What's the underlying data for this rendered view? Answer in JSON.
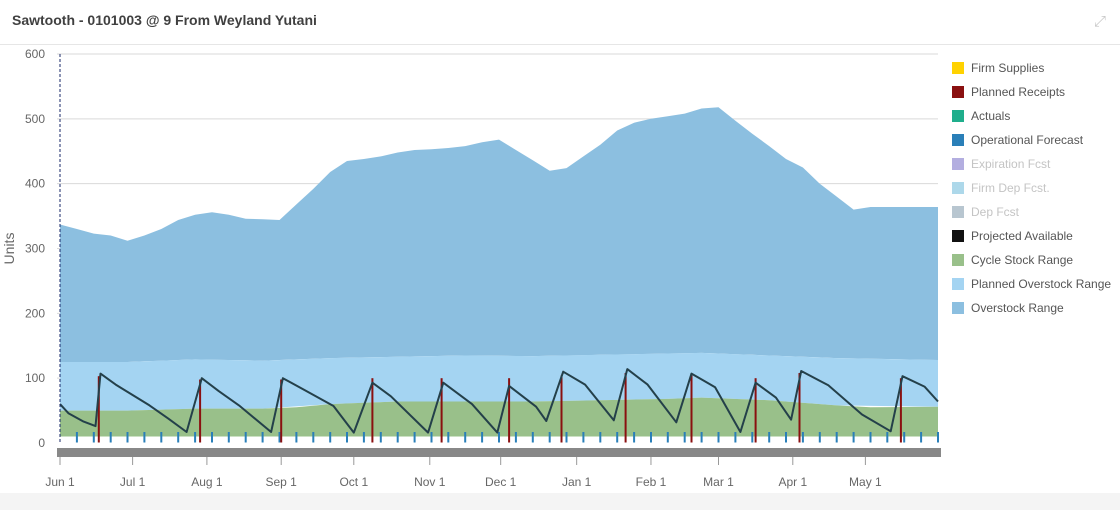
{
  "header": {
    "title": "Sawtooth - 0101003 @ 9 From Weyland Yutani",
    "expand_icon": "expand-icon"
  },
  "colors": {
    "overstock": "#8cbfe0",
    "planned_overstock": "#a4d4f2",
    "cycle_stock": "#99c08a",
    "projected": "#24404a",
    "planned_receipts": "#8a1010",
    "operational_forecast": "#2a7fb8",
    "grid": "#d9d9d9",
    "scrollbar": "#888888"
  },
  "legend": [
    {
      "label": "Firm Supplies",
      "color": "#ffd200",
      "active": true
    },
    {
      "label": "Planned Receipts",
      "color": "#8a1010",
      "active": true
    },
    {
      "label": "Actuals",
      "color": "#1fae8c",
      "active": true
    },
    {
      "label": "Operational Forecast",
      "color": "#2a7fb8",
      "active": true
    },
    {
      "label": "Expiration Fcst",
      "color": "#b3aee0",
      "active": false
    },
    {
      "label": "Firm Dep Fcst.",
      "color": "#add8ea",
      "active": false
    },
    {
      "label": "Dep Fcst",
      "color": "#b8c6d0",
      "active": false
    },
    {
      "label": "Projected Available",
      "color": "#111111",
      "active": true
    },
    {
      "label": "Cycle Stock Range",
      "color": "#99c08a",
      "active": true
    },
    {
      "label": "Planned Overstock Range",
      "color": "#a4d4f2",
      "active": true
    },
    {
      "label": "Overstock Range",
      "color": "#8cbfe0",
      "active": true
    }
  ],
  "chart_data": {
    "type": "area",
    "ylabel": "Units",
    "ylim": [
      0,
      600
    ],
    "yticks": [
      0,
      100,
      200,
      300,
      400,
      500,
      600
    ],
    "xlim": [
      0,
      52
    ],
    "xticks": [
      {
        "week": 0,
        "label": "Jun 1"
      },
      {
        "week": 4.3,
        "label": "Jul 1"
      },
      {
        "week": 8.7,
        "label": "Aug 1"
      },
      {
        "week": 13.1,
        "label": "Sep 1"
      },
      {
        "week": 17.4,
        "label": "Oct 1"
      },
      {
        "week": 21.9,
        "label": "Nov 1"
      },
      {
        "week": 26.1,
        "label": "Dec 1"
      },
      {
        "week": 30.6,
        "label": "Jan 1"
      },
      {
        "week": 35.0,
        "label": "Feb 1"
      },
      {
        "week": 39.0,
        "label": "Mar 1"
      },
      {
        "week": 43.4,
        "label": "Apr 1"
      },
      {
        "week": 47.7,
        "label": "May 1"
      }
    ],
    "overstock_top": [
      [
        0,
        337
      ],
      [
        1,
        330
      ],
      [
        2,
        323
      ],
      [
        3,
        320
      ],
      [
        4,
        312
      ],
      [
        5,
        320
      ],
      [
        6,
        330
      ],
      [
        7,
        344
      ],
      [
        8,
        352
      ],
      [
        9,
        356
      ],
      [
        10,
        352
      ],
      [
        11,
        346
      ],
      [
        12,
        345
      ],
      [
        13,
        344
      ],
      [
        14,
        368
      ],
      [
        15,
        392
      ],
      [
        16,
        418
      ],
      [
        17,
        435
      ],
      [
        18,
        438
      ],
      [
        19,
        442
      ],
      [
        20,
        448
      ],
      [
        21,
        452
      ],
      [
        22,
        453
      ],
      [
        23,
        455
      ],
      [
        24,
        458
      ],
      [
        25,
        464
      ],
      [
        26,
        468
      ],
      [
        27,
        452
      ],
      [
        28,
        436
      ],
      [
        29,
        420
      ],
      [
        30,
        424
      ],
      [
        31,
        442
      ],
      [
        32,
        460
      ],
      [
        33,
        482
      ],
      [
        34,
        494
      ],
      [
        35,
        500
      ],
      [
        36,
        504
      ],
      [
        37,
        508
      ],
      [
        38,
        516
      ],
      [
        39,
        518
      ],
      [
        40,
        497
      ],
      [
        41,
        477
      ],
      [
        42,
        458
      ],
      [
        43,
        438
      ],
      [
        44,
        425
      ],
      [
        45,
        400
      ],
      [
        46,
        380
      ],
      [
        47,
        360
      ],
      [
        48,
        364
      ],
      [
        49,
        364
      ],
      [
        50,
        364
      ],
      [
        51,
        364
      ],
      [
        52,
        364
      ]
    ],
    "planned_overstock_top": [
      [
        0,
        125
      ],
      [
        4,
        125
      ],
      [
        8,
        129
      ],
      [
        12,
        127
      ],
      [
        16,
        131
      ],
      [
        20,
        133
      ],
      [
        24,
        135
      ],
      [
        28,
        134
      ],
      [
        32,
        136
      ],
      [
        36,
        138
      ],
      [
        38,
        139
      ],
      [
        42,
        135
      ],
      [
        46,
        131
      ],
      [
        52,
        128
      ]
    ],
    "cycle_stock_top": [
      [
        0,
        50
      ],
      [
        4,
        50
      ],
      [
        8,
        53
      ],
      [
        12,
        53
      ],
      [
        14,
        55
      ],
      [
        16,
        60
      ],
      [
        18,
        62
      ],
      [
        20,
        64
      ],
      [
        24,
        64
      ],
      [
        28,
        64
      ],
      [
        32,
        66
      ],
      [
        36,
        68
      ],
      [
        38,
        70
      ],
      [
        42,
        66
      ],
      [
        46,
        58
      ],
      [
        48,
        55
      ],
      [
        52,
        56
      ]
    ],
    "cycle_stock_bottom": 10,
    "projected_available": [
      [
        0,
        60
      ],
      [
        0.5,
        46
      ],
      [
        1.4,
        33
      ],
      [
        2.1,
        26
      ],
      [
        2.4,
        107
      ],
      [
        3.3,
        90
      ],
      [
        4.3,
        74
      ],
      [
        5.3,
        58
      ],
      [
        6.4,
        38
      ],
      [
        7.5,
        17
      ],
      [
        8.4,
        100
      ],
      [
        9.4,
        80
      ],
      [
        10.6,
        58
      ],
      [
        12.5,
        17
      ],
      [
        13.2,
        100
      ],
      [
        14.4,
        83
      ],
      [
        16.2,
        57
      ],
      [
        17.4,
        16
      ],
      [
        18.5,
        93
      ],
      [
        19.6,
        72
      ],
      [
        21.8,
        16
      ],
      [
        22.7,
        93
      ],
      [
        24.4,
        60
      ],
      [
        25.9,
        16
      ],
      [
        26.6,
        88
      ],
      [
        28.2,
        56
      ],
      [
        28.8,
        34
      ],
      [
        29.8,
        110
      ],
      [
        31.1,
        90
      ],
      [
        32.8,
        35
      ],
      [
        33.6,
        114
      ],
      [
        34.8,
        90
      ],
      [
        36.5,
        32
      ],
      [
        37.4,
        107
      ],
      [
        38.8,
        86
      ],
      [
        40.3,
        17
      ],
      [
        41.2,
        93
      ],
      [
        42.4,
        70
      ],
      [
        43.3,
        36
      ],
      [
        43.9,
        111
      ],
      [
        45.5,
        89
      ],
      [
        47.5,
        44
      ],
      [
        49.2,
        18
      ],
      [
        49.9,
        103
      ],
      [
        51.2,
        87
      ],
      [
        52.0,
        64
      ]
    ],
    "planned_receipts": [
      [
        2.3,
        103
      ],
      [
        8.3,
        98
      ],
      [
        13.1,
        98
      ],
      [
        18.5,
        100
      ],
      [
        22.6,
        100
      ],
      [
        26.6,
        100
      ],
      [
        29.7,
        104
      ],
      [
        33.5,
        108
      ],
      [
        37.4,
        104
      ],
      [
        41.2,
        100
      ],
      [
        43.8,
        108
      ],
      [
        49.8,
        100
      ]
    ],
    "operational_forecast_bar_height": 17
  }
}
